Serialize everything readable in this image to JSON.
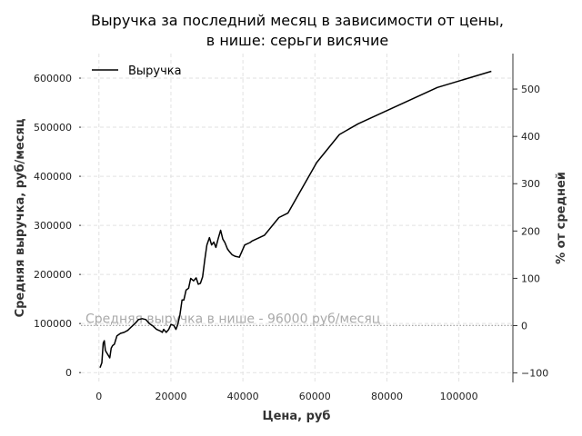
{
  "chart_data": {
    "type": "line",
    "title_lines": [
      "Выручка за последний месяц в зависимости от цены,",
      "в нише: серьги висячие"
    ],
    "xlabel": "Цена, руб",
    "ylabel": "Средняя выручка, руб/месяц",
    "y2label": "% от средней",
    "xlim": [
      -5000,
      115000
    ],
    "ylim": [
      -20000,
      650000
    ],
    "y2lim": [
      -120,
      575
    ],
    "x_ticks": [
      0,
      20000,
      40000,
      60000,
      80000,
      100000
    ],
    "y_ticks": [
      0,
      100000,
      200000,
      300000,
      400000,
      500000,
      600000
    ],
    "y2_ticks": [
      -100,
      0,
      100,
      200,
      300,
      400,
      500
    ],
    "grid": true,
    "legend_position": "top-left",
    "series": [
      {
        "name": "Выручка",
        "color": "#000000",
        "x": [
          300,
          800,
          1200,
          1500,
          1800,
          2200,
          2600,
          3000,
          3400,
          3800,
          4300,
          5000,
          6000,
          7000,
          8000,
          9000,
          10000,
          11000,
          12000,
          13000,
          14000,
          15000,
          16000,
          17000,
          17600,
          18000,
          18700,
          19400,
          20000,
          20800,
          21400,
          21900,
          22500,
          23100,
          23600,
          24200,
          24900,
          25500,
          26300,
          27000,
          27600,
          28200,
          28800,
          29400,
          30000,
          30700,
          31300,
          31900,
          32500,
          33100,
          33800,
          34400,
          35000,
          35700,
          36300,
          37000,
          37800,
          39000,
          40500,
          42000,
          42500,
          46000,
          50000,
          52500,
          60500,
          66800,
          72000,
          94000,
          109000
        ],
        "y": [
          10000,
          20000,
          60000,
          65000,
          45000,
          40000,
          35000,
          30000,
          50000,
          55000,
          58000,
          75000,
          80000,
          82000,
          86000,
          93000,
          100000,
          108000,
          110000,
          108000,
          100000,
          95000,
          88000,
          85000,
          82000,
          88000,
          82000,
          88000,
          98000,
          96000,
          88000,
          98000,
          118000,
          148000,
          148000,
          168000,
          172000,
          192000,
          187000,
          193000,
          180000,
          182000,
          195000,
          230000,
          260000,
          275000,
          260000,
          266000,
          255000,
          272000,
          290000,
          272000,
          265000,
          252000,
          246000,
          240000,
          237000,
          235000,
          260000,
          265000,
          268000,
          280000,
          316000,
          325000,
          428000,
          485000,
          507000,
          581000,
          614000
        ]
      }
    ],
    "reference_line": {
      "y": 96000,
      "label": "Средняя выручка в нише - 96000 руб/месяц",
      "color": "#999999"
    }
  }
}
